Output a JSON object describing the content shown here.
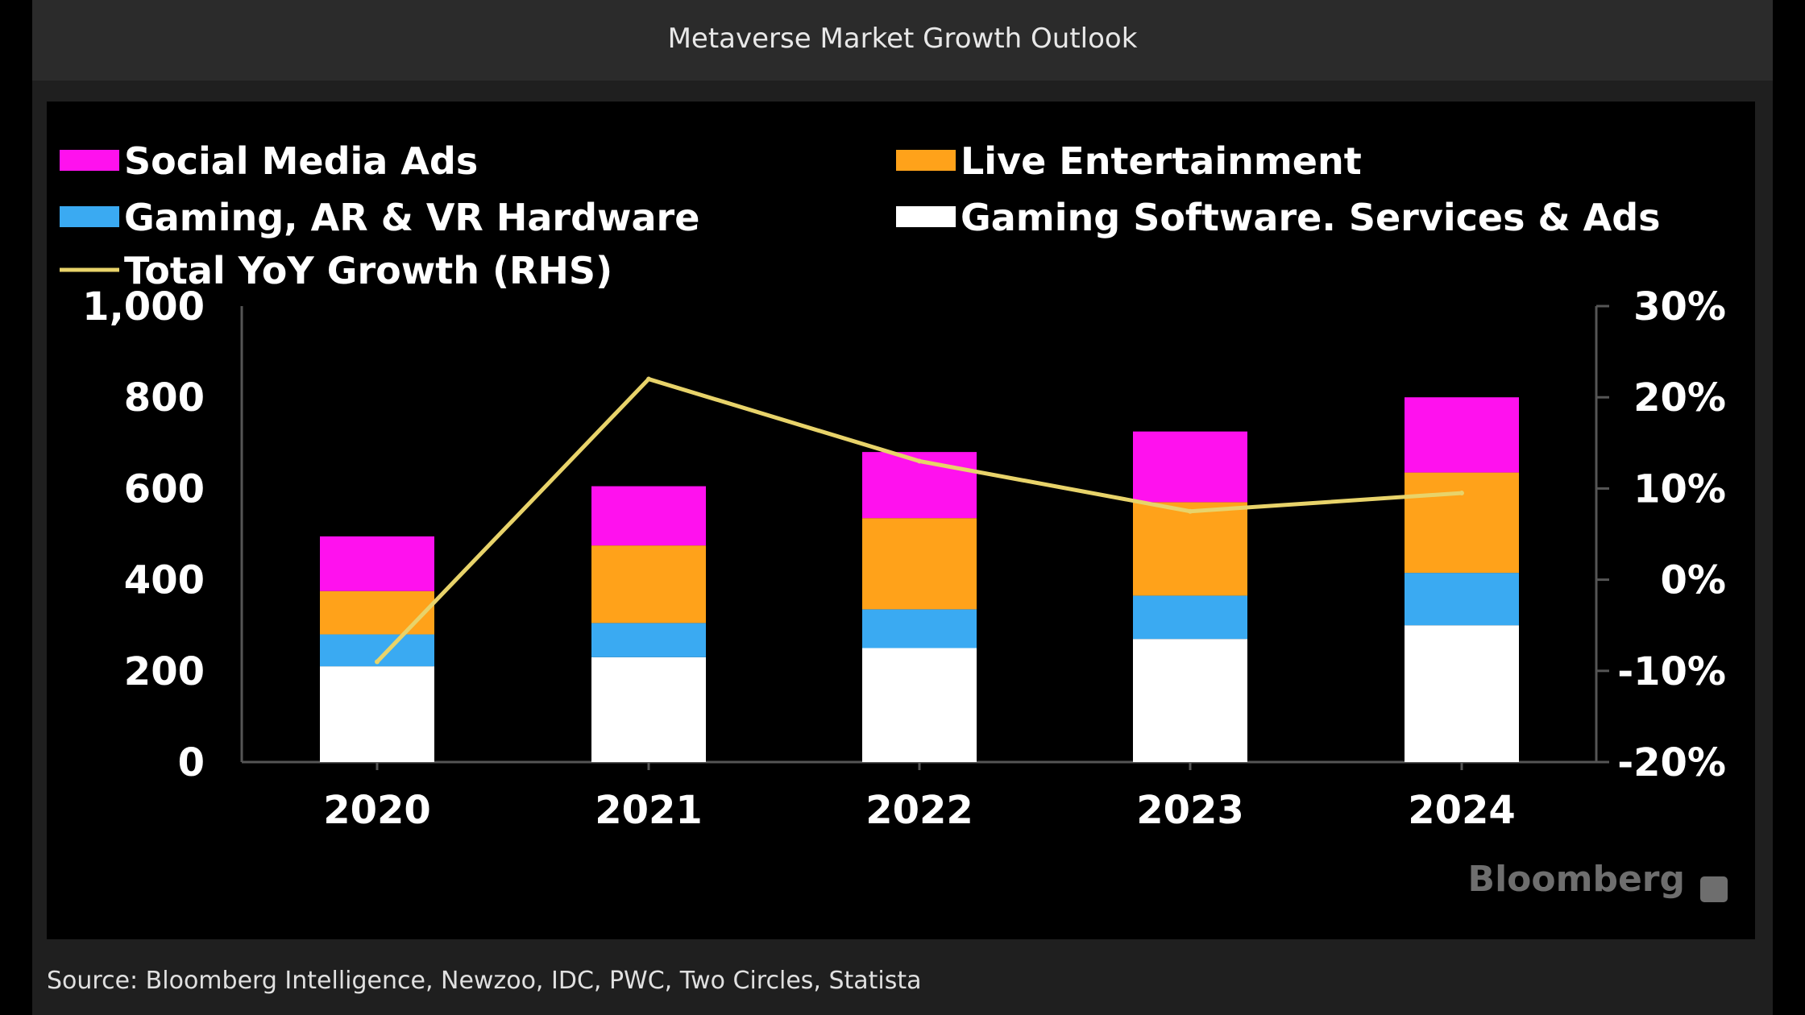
{
  "window_title": "Metaverse Market Growth Outlook",
  "source": "Source: Bloomberg Intelligence, Newzoo, IDC, PWC, Two Circles, Statista",
  "watermark": "Bloomberg",
  "colors": {
    "social_media_ads": "#ff11ee",
    "live_entertainment": "#ffa21a",
    "gaming_hardware": "#3aaaf2",
    "gaming_software": "#ffffff",
    "total_growth": "#e8d36a",
    "axis": "#555555"
  },
  "chart_data": {
    "type": "bar",
    "stacked": true,
    "categories": [
      "2020",
      "2021",
      "2022",
      "2023",
      "2024"
    ],
    "series": [
      {
        "name": "Gaming Software. Services & Ads",
        "color_key": "gaming_software",
        "values": [
          210,
          230,
          250,
          270,
          300
        ]
      },
      {
        "name": "Gaming, AR & VR Hardware",
        "color_key": "gaming_hardware",
        "values": [
          70,
          75,
          85,
          95,
          115
        ]
      },
      {
        "name": "Live Entertainment",
        "color_key": "live_entertainment",
        "values": [
          95,
          170,
          200,
          205,
          220
        ]
      },
      {
        "name": "Social Media Ads",
        "color_key": "social_media_ads",
        "values": [
          120,
          130,
          145,
          155,
          165
        ]
      }
    ],
    "line_series": {
      "name": "Total YoY Growth (RHS)",
      "axis": "right",
      "color_key": "total_growth",
      "values": [
        -9,
        22,
        13,
        7.5,
        9.5
      ]
    },
    "legend": [
      {
        "label": "Social Media Ads",
        "color_key": "social_media_ads",
        "kind": "box"
      },
      {
        "label": "Live Entertainment",
        "color_key": "live_entertainment",
        "kind": "box"
      },
      {
        "label": "Gaming, AR & VR Hardware",
        "color_key": "gaming_hardware",
        "kind": "box"
      },
      {
        "label": "Gaming Software. Services & Ads",
        "color_key": "gaming_software",
        "kind": "box"
      },
      {
        "label": "Total YoY Growth (RHS)",
        "color_key": "total_growth",
        "kind": "line"
      }
    ],
    "y_left": {
      "min": 0,
      "max": 1000,
      "ticks": [
        0,
        200,
        400,
        600,
        800,
        1000
      ],
      "tick_labels": [
        "0",
        "200",
        "400",
        "600",
        "800",
        "1,000"
      ]
    },
    "y_right": {
      "min": -20,
      "max": 30,
      "ticks": [
        -20,
        -10,
        0,
        10,
        20,
        30
      ],
      "tick_labels": [
        "-20%",
        "-10%",
        "0%",
        "10%",
        "20%",
        "30%"
      ]
    },
    "legend_position": "top",
    "grid": false
  }
}
